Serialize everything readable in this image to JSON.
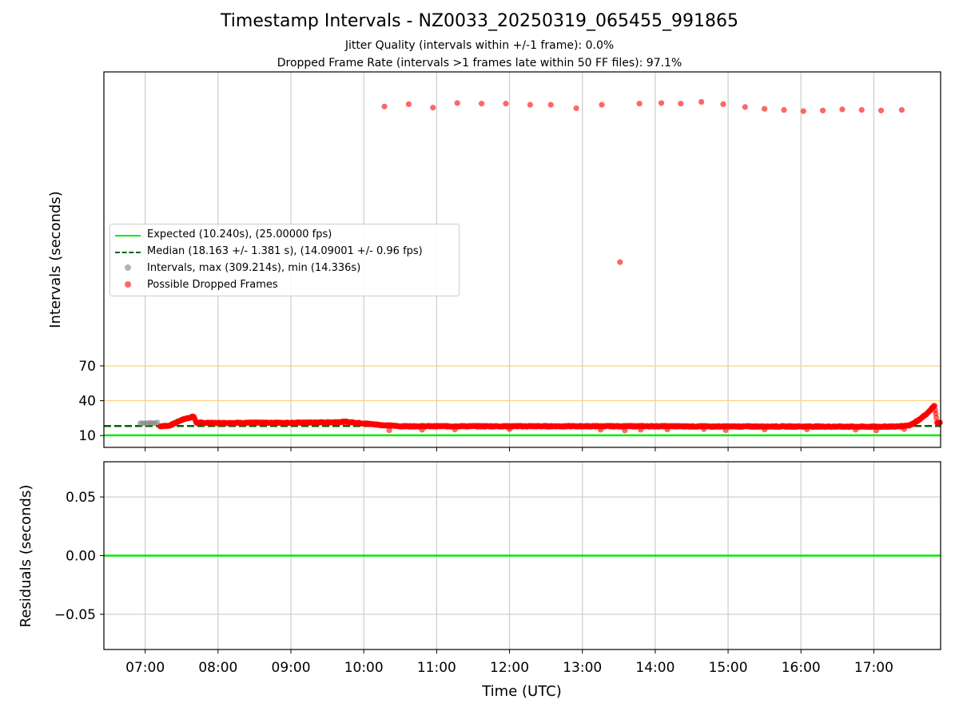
{
  "chart_data": [
    {
      "type": "scatter",
      "title": "Timestamp Intervals - NZ0033_20250319_065455_991865",
      "subtitle": [
        "Jitter Quality (intervals within +/-1 frame): 0.0%",
        "Dropped Frame Rate (intervals >1 frames late within 50 FF files): 97.1%"
      ],
      "xlabel": "",
      "ylabel": "Intervals (seconds)",
      "x_tick_labels": [
        "07:00",
        "08:00",
        "09:00",
        "10:00",
        "11:00",
        "12:00",
        "13:00",
        "14:00",
        "15:00",
        "16:00",
        "17:00"
      ],
      "xlim": [
        "06:26",
        "17:55"
      ],
      "y_ticks": [
        10,
        40,
        70
      ],
      "ylim": [
        0,
        325
      ],
      "grid": true,
      "legend_placement": "center-left",
      "reference_lines": [
        {
          "name": "Expected (10.240s), (25.00000 fps)",
          "y": 10.24,
          "color": "#00ee00",
          "style": "solid"
        },
        {
          "name": "Median (18.163 +/- 1.381 s), (14.09001 +/- 0.96 fps)",
          "y": 18.163,
          "color": "#006400",
          "style": "dashed"
        },
        {
          "y": 40,
          "color": "#ffd27a",
          "style": "solid"
        },
        {
          "y": 70,
          "color": "#ffd27a",
          "style": "solid"
        }
      ],
      "series": [
        {
          "name": "Intervals, max (309.214s), min (14.336s)",
          "color": "#808080",
          "points": [
            [
              "06:56",
              20.6
            ],
            [
              "06:58",
              20.6
            ],
            [
              "07:00",
              20.6
            ],
            [
              "07:02",
              20.6
            ],
            [
              "07:04",
              21.0
            ],
            [
              "07:06",
              20.8
            ],
            [
              "07:08",
              20.6
            ],
            [
              "07:10",
              21.2
            ]
          ]
        },
        {
          "name": "Possible Dropped Frames",
          "color": "#ff0000",
          "points": [
            [
              "10:17",
              295
            ],
            [
              "10:37",
              297
            ],
            [
              "10:57",
              294
            ],
            [
              "11:17",
              298
            ],
            [
              "11:37",
              297.5
            ],
            [
              "11:57",
              297.5
            ],
            [
              "12:17",
              296.5
            ],
            [
              "12:34",
              296.5
            ],
            [
              "12:55",
              293.5
            ],
            [
              "13:16",
              296.5
            ],
            [
              "13:31",
              160
            ],
            [
              "13:47",
              297.5
            ],
            [
              "14:05",
              298
            ],
            [
              "14:21",
              297.5
            ],
            [
              "14:38",
              299
            ],
            [
              "14:56",
              297
            ],
            [
              "15:14",
              294.5
            ],
            [
              "15:30",
              293
            ],
            [
              "15:46",
              292
            ],
            [
              "16:02",
              291
            ],
            [
              "16:18",
              291.5
            ],
            [
              "16:34",
              292.5
            ],
            [
              "16:50",
              292
            ],
            [
              "17:06",
              291.5
            ],
            [
              "17:23",
              292
            ]
          ],
          "dense_band": [
            [
              "07:12",
              18.0
            ],
            [
              "07:20",
              18.5
            ],
            [
              "07:25",
              21.0
            ],
            [
              "07:30",
              23.5
            ],
            [
              "07:35",
              25.0
            ],
            [
              "07:40",
              26.5
            ],
            [
              "07:42",
              21.0
            ],
            [
              "08:00",
              20.8
            ],
            [
              "08:30",
              21.0
            ],
            [
              "09:00",
              21.0
            ],
            [
              "09:30",
              21.3
            ],
            [
              "09:45",
              21.8
            ],
            [
              "10:00",
              20.5
            ],
            [
              "10:15",
              19.0
            ],
            [
              "10:30",
              18.0
            ],
            [
              "11:00",
              18.0
            ],
            [
              "12:00",
              18.0
            ],
            [
              "13:00",
              18.0
            ],
            [
              "14:00",
              18.0
            ],
            [
              "15:00",
              17.8
            ],
            [
              "16:00",
              17.8
            ],
            [
              "17:00",
              17.6
            ],
            [
              "17:20",
              17.8
            ],
            [
              "17:30",
              19.0
            ],
            [
              "17:38",
              24.0
            ],
            [
              "17:45",
              30.0
            ],
            [
              "17:50",
              36.0
            ],
            [
              "17:52",
              21.0
            ],
            [
              "17:55",
              21.0
            ]
          ],
          "outliers": [
            [
              "10:21",
              14.5
            ],
            [
              "10:48",
              15.0
            ],
            [
              "11:15",
              15.2
            ],
            [
              "12:00",
              15.5
            ],
            [
              "13:15",
              15.0
            ],
            [
              "13:35",
              14.4
            ],
            [
              "13:48",
              15.0
            ],
            [
              "14:10",
              15.2
            ],
            [
              "14:40",
              15.5
            ],
            [
              "14:58",
              14.6
            ],
            [
              "15:30",
              15.2
            ],
            [
              "16:05",
              15.3
            ],
            [
              "16:45",
              15.0
            ],
            [
              "17:02",
              14.4
            ],
            [
              "17:25",
              15.5
            ]
          ]
        }
      ]
    },
    {
      "type": "line",
      "title": "",
      "xlabel": "Time (UTC)",
      "ylabel": "Residuals (seconds)",
      "x_tick_labels": [
        "07:00",
        "08:00",
        "09:00",
        "10:00",
        "11:00",
        "12:00",
        "13:00",
        "14:00",
        "15:00",
        "16:00",
        "17:00"
      ],
      "xlim": [
        "06:26",
        "17:55"
      ],
      "y_ticks": [
        0.05,
        0.0,
        -0.05
      ],
      "y_tick_labels": [
        "0.05",
        "0.00",
        "−0.05"
      ],
      "ylim": [
        -0.08,
        0.08
      ],
      "grid": true,
      "reference_lines": [
        {
          "y": 0.0,
          "color": "#00ee00",
          "style": "solid"
        }
      ]
    }
  ]
}
